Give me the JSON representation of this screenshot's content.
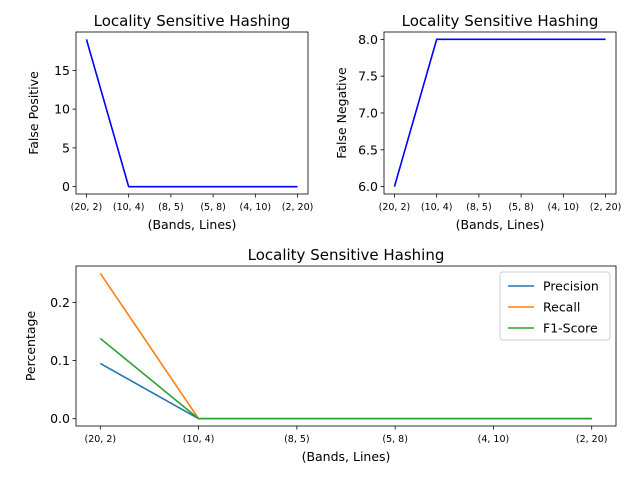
{
  "chart_data": [
    {
      "type": "line",
      "title": "Locality Sensitive Hashing",
      "xlabel": "(Bands, Lines)",
      "ylabel": "False Positive",
      "categories": [
        "(20, 2)",
        "(10, 4)",
        "(8, 5)",
        "(5, 8)",
        "(4, 10)",
        "(2, 20)"
      ],
      "series": [
        {
          "values": [
            19,
            0,
            0,
            0,
            0,
            0
          ],
          "color": "#0000ff"
        }
      ],
      "ylim": [
        -0.95,
        19.95
      ],
      "yticks": [
        0,
        5,
        10,
        15
      ],
      "grid": false,
      "legend": "none"
    },
    {
      "type": "line",
      "title": "Locality Sensitive Hashing",
      "xlabel": "(Bands, Lines)",
      "ylabel": "False Negative",
      "categories": [
        "(20, 2)",
        "(10, 4)",
        "(8, 5)",
        "(5, 8)",
        "(4, 10)",
        "(2, 20)"
      ],
      "series": [
        {
          "values": [
            6,
            8,
            8,
            8,
            8,
            8
          ],
          "color": "#0000ff"
        }
      ],
      "ylim": [
        5.9,
        8.1
      ],
      "yticks": [
        6.0,
        6.5,
        7.0,
        7.5,
        8.0
      ],
      "ytick_labels": [
        "6.0",
        "6.5",
        "7.0",
        "7.5",
        "8.0"
      ],
      "grid": false,
      "legend": "none"
    },
    {
      "type": "line",
      "title": "Locality Sensitive Hashing",
      "xlabel": "(Bands, Lines)",
      "ylabel": "Percentage",
      "categories": [
        "(20, 2)",
        "(10, 4)",
        "(8, 5)",
        "(5, 8)",
        "(4, 10)",
        "(2, 20)"
      ],
      "series": [
        {
          "name": "Precision",
          "values": [
            0.095,
            0.0,
            0.0,
            0.0,
            0.0,
            0.0
          ],
          "color": "#1f77b4"
        },
        {
          "name": "Recall",
          "values": [
            0.25,
            0.0,
            0.0,
            0.0,
            0.0,
            0.0
          ],
          "color": "#ff7f0e"
        },
        {
          "name": "F1-Score",
          "values": [
            0.138,
            0.0,
            0.0,
            0.0,
            0.0,
            0.0
          ],
          "color": "#2ca02c"
        }
      ],
      "ylim": [
        -0.0125,
        0.2625
      ],
      "yticks": [
        0.0,
        0.1,
        0.2
      ],
      "ytick_labels": [
        "0.0",
        "0.1",
        "0.2"
      ],
      "grid": false,
      "legend": "top-right"
    }
  ]
}
